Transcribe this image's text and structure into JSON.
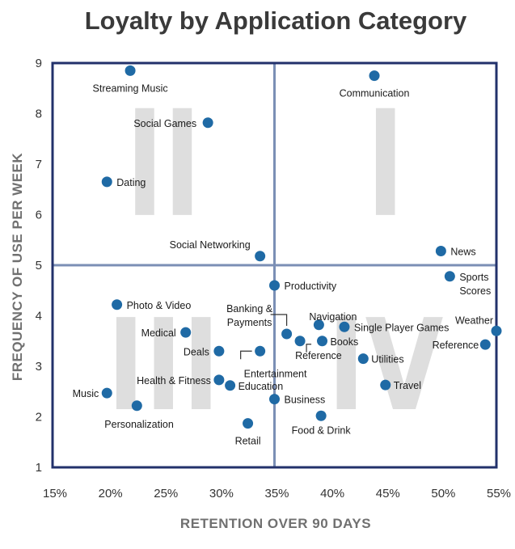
{
  "chart_data": {
    "type": "scatter",
    "title": "Loyalty by Application Category",
    "xlabel": "RETENTION OVER 90 DAYS",
    "ylabel": "FREQUENCY OF USE PER WEEK",
    "xlim": [
      15,
      55
    ],
    "ylim": [
      1,
      9
    ],
    "x_ticks": [
      "15%",
      "20%",
      "25%",
      "30%",
      "35%",
      "40%",
      "45%",
      "50%",
      "55%"
    ],
    "y_ticks": [
      "1",
      "2",
      "3",
      "4",
      "5",
      "6",
      "7",
      "8",
      "9"
    ],
    "quadrant_divider": {
      "x": 35,
      "y": 5
    },
    "quadrant_labels": [
      "II",
      "I",
      "III",
      "IV"
    ],
    "point_color": "#1f6aa5",
    "frame_color": "#22316b",
    "points": [
      {
        "label": "Streaming Music",
        "x": 22,
        "y": 8.85
      },
      {
        "label": "Communication",
        "x": 44,
        "y": 8.75
      },
      {
        "label": "Social Games",
        "x": 29,
        "y": 7.82
      },
      {
        "label": "Dating",
        "x": 19.9,
        "y": 6.65
      },
      {
        "label": "Social Networking",
        "x": 33.7,
        "y": 5.18
      },
      {
        "label": "News",
        "x": 50,
        "y": 5.28
      },
      {
        "label": "Productivity",
        "x": 35,
        "y": 4.6
      },
      {
        "label": "Sports Scores",
        "x": 50.8,
        "y": 4.78
      },
      {
        "label": "Photo & Video",
        "x": 20.8,
        "y": 4.22
      },
      {
        "label": "Navigation",
        "x": 39,
        "y": 3.82
      },
      {
        "label": "Single Player Games",
        "x": 41.3,
        "y": 3.78
      },
      {
        "label": "Weather",
        "x": 55,
        "y": 3.7
      },
      {
        "label": "Medical",
        "x": 27,
        "y": 3.67
      },
      {
        "label": "Banking & Payments",
        "x": 36.1,
        "y": 3.64
      },
      {
        "label": "Reference",
        "x": 37.3,
        "y": 3.5
      },
      {
        "label": "Books",
        "x": 39.3,
        "y": 3.5
      },
      {
        "label": "Reference",
        "x": 54,
        "y": 3.43
      },
      {
        "label": "Deals",
        "x": 30,
        "y": 3.3
      },
      {
        "label": "Entertainment",
        "x": 33.7,
        "y": 3.3
      },
      {
        "label": "Utilities",
        "x": 43,
        "y": 3.15
      },
      {
        "label": "Health & Fitness",
        "x": 30,
        "y": 2.73
      },
      {
        "label": "Education",
        "x": 31,
        "y": 2.62
      },
      {
        "label": "Travel",
        "x": 45,
        "y": 2.63
      },
      {
        "label": "Music",
        "x": 19.9,
        "y": 2.47
      },
      {
        "label": "Business",
        "x": 35,
        "y": 2.35
      },
      {
        "label": "Personalization",
        "x": 22.6,
        "y": 2.22
      },
      {
        "label": "Food & Drink",
        "x": 39.2,
        "y": 2.02
      },
      {
        "label": "Retail",
        "x": 32.6,
        "y": 1.87
      }
    ]
  }
}
